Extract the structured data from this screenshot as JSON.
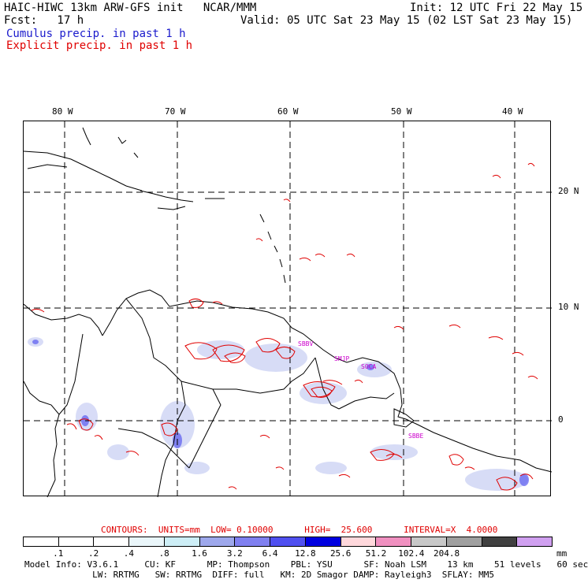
{
  "header": {
    "model_title": "HAIC-HIWC 13km ARW-GFS init",
    "org": "NCAR/MMM",
    "init": "Init: 12 UTC Fri 22 May 15",
    "fcst": "Fcst:   17 h",
    "valid": "Valid: 05 UTC Sat 23 May 15 (02 LST Sat 23 May 15)",
    "cumulus_label": "Cumulus precip. in past 1 h",
    "explicit_label": "Explicit precip. in past 1 h"
  },
  "map": {
    "lon_labels": [
      "80 W",
      "70 W",
      "60 W",
      "50 W",
      "40 W"
    ],
    "lat_labels": [
      "20 N",
      "10 N",
      "0"
    ],
    "stations": [
      "SBBV",
      "SMJP",
      "SOCA",
      "SBBE"
    ]
  },
  "contours_line": "CONTOURS:  UNITS=mm  LOW= 0.10000      HIGH=  25.600      INTERVAL=X  4.0000",
  "colorbar": {
    "colors": [
      "#ffffff",
      "#ffffff",
      "#ffffff",
      "#eaf6fa",
      "#cdeef6",
      "#9ea8ec",
      "#8080f0",
      "#5050f0",
      "#0000e0",
      "#ffd8dc",
      "#f090c0",
      "#c8c8c8",
      "#a0a0a0",
      "#404040",
      "#d0a0f0"
    ],
    "labels": [
      ".1",
      ".2",
      ".4",
      ".8",
      "1.6",
      "3.2",
      "6.4",
      "12.8",
      "25.6",
      "51.2",
      "102.4",
      "204.8"
    ],
    "unit": "mm"
  },
  "info_line1": "Model Info: V3.6.1     CU: KF      MP: Thompson    PBL: YSU      SF: Noah LSM    13 km    51 levels   60 sec",
  "info_line2": "             LW: RRTMG   SW: RRTMG  DIFF: full   KM: 2D Smagor DAMP: Rayleigh3  SFLAY: MM5"
}
